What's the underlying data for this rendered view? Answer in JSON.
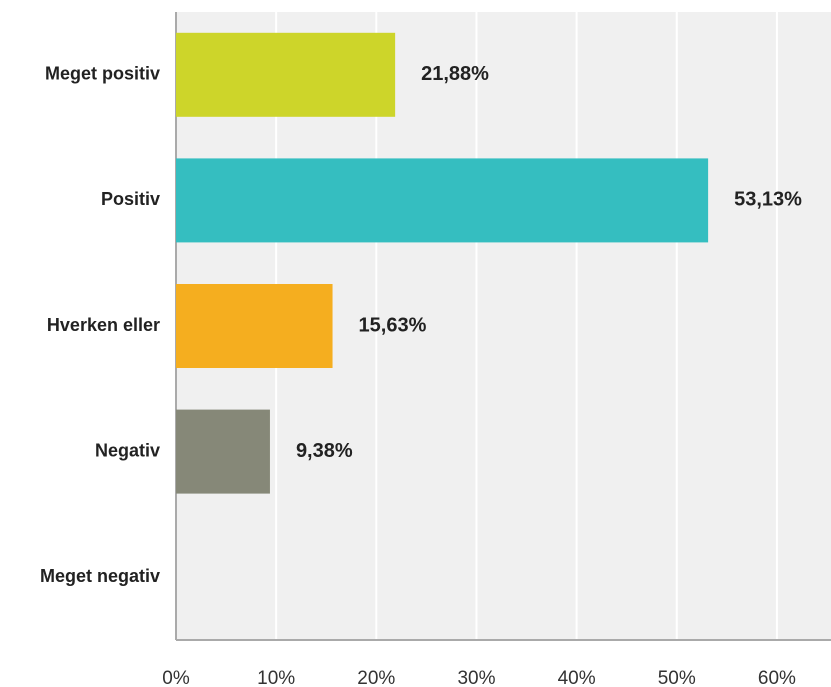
{
  "chart_data": {
    "type": "hbar",
    "categories": [
      "Meget positiv",
      "Positiv",
      "Hverken eller",
      "Negativ",
      "Meget negativ"
    ],
    "values": [
      21.88,
      53.13,
      15.63,
      9.38,
      0
    ],
    "value_labels": [
      "21,88%",
      "53,13%",
      "15,63%",
      "9,38%",
      null
    ],
    "colors": [
      "#cdd52a",
      "#35bec0",
      "#f5ae1f",
      "#868878",
      null
    ],
    "xlim": [
      0,
      65.4
    ],
    "xticks": [
      {
        "value": 0,
        "label": "0%"
      },
      {
        "value": 10,
        "label": "10%"
      },
      {
        "value": 20,
        "label": "20%"
      },
      {
        "value": 30,
        "label": "30%"
      },
      {
        "value": 40,
        "label": "40%"
      },
      {
        "value": 50,
        "label": "50%"
      },
      {
        "value": 60,
        "label": "60%"
      }
    ],
    "grid": true
  }
}
